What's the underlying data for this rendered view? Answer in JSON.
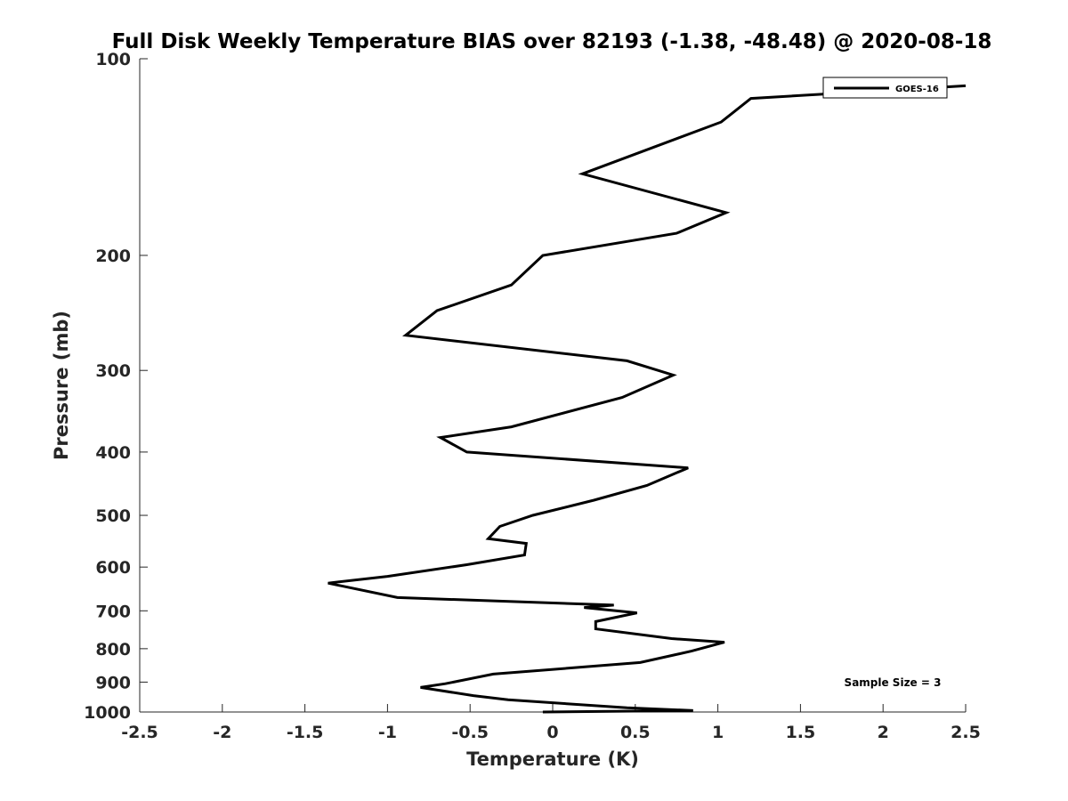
{
  "chart_data": {
    "type": "line",
    "title": "Full Disk Weekly Temperature BIAS over 82193 (-1.38, -48.48) @ 2020-08-18",
    "xlabel": "Temperature (K)",
    "ylabel": "Pressure (mb)",
    "xlim": [
      -2.5,
      2.5
    ],
    "ylim": [
      100,
      1000
    ],
    "y_scale": "log",
    "y_reversed": true,
    "x_ticks": [
      -2.5,
      -2,
      -1.5,
      -1,
      -0.5,
      0,
      0.5,
      1,
      1.5,
      2,
      2.5
    ],
    "x_tick_labels": [
      "-2.5",
      "-2",
      "-1.5",
      "-1",
      "-0.5",
      "0",
      "0.5",
      "1",
      "1.5",
      "2",
      "2.5"
    ],
    "y_ticks": [
      100,
      200,
      300,
      400,
      500,
      600,
      700,
      800,
      900,
      1000
    ],
    "y_tick_labels": [
      "100",
      "200",
      "300",
      "400",
      "500",
      "600",
      "700",
      "800",
      "900",
      "1000"
    ],
    "legend_position": "top-right",
    "annotation": "Sample Size = 3",
    "series": [
      {
        "name": "GOES-16",
        "color": "#000000",
        "x": [
          2.5,
          1.2,
          1.02,
          0.18,
          1.05,
          0.75,
          -0.06,
          -0.25,
          -0.7,
          -0.89,
          0.45,
          0.73,
          0.42,
          -0.25,
          -0.68,
          -0.52,
          0.82,
          0.57,
          0.25,
          -0.12,
          -0.32,
          -0.39,
          -0.16,
          -0.17,
          -0.52,
          -1.0,
          -1.36,
          -0.94,
          0.37,
          0.19,
          0.51,
          0.26,
          0.26,
          0.72,
          1.04,
          0.84,
          0.53,
          -0.36,
          -0.65,
          -0.8,
          -0.48,
          -0.27,
          0.45,
          0.85,
          -0.06
        ],
        "y": [
          110,
          115,
          125,
          150,
          172,
          185,
          200,
          222,
          243,
          265,
          290,
          305,
          330,
          366,
          380,
          400,
          423,
          450,
          474,
          500,
          520,
          543,
          552,
          575,
          595,
          620,
          635,
          668,
          686,
          692,
          705,
          727,
          746,
          772,
          782,
          807,
          840,
          875,
          905,
          917,
          944,
          958,
          985,
          995,
          1000
        ]
      }
    ]
  }
}
